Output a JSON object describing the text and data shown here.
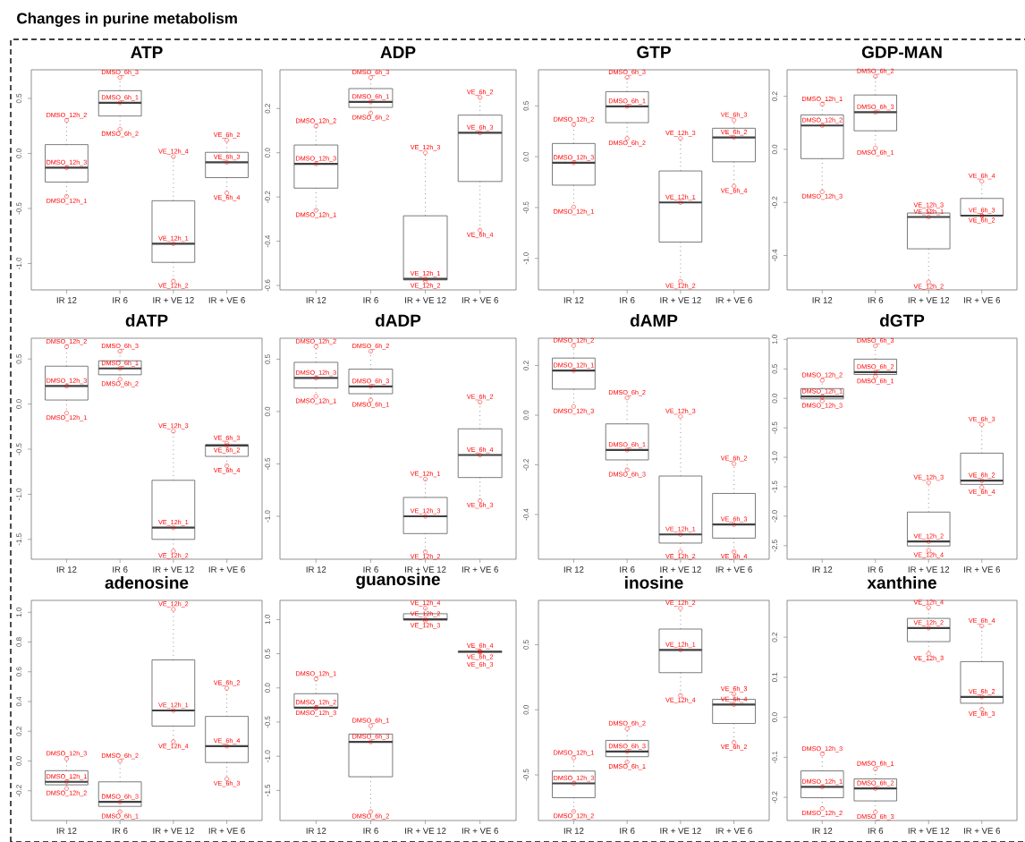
{
  "chart_data": [
    {
      "type": "box",
      "title": "ATP",
      "categories": [
        "IR 12",
        "IR 6",
        "IR + VE 12",
        "IR + VE 6"
      ],
      "ylim": [
        -1.24,
        0.76
      ],
      "marker": "circle",
      "yticks": [
        {
          "value": -1.0,
          "label": "-1.0"
        },
        {
          "value": -0.5,
          "label": "-0.5"
        },
        {
          "value": 0.0,
          "label": "0.0"
        },
        {
          "value": 0.5,
          "label": "0.5"
        }
      ],
      "boxes": [
        {
          "low": -0.39,
          "q1": -0.26,
          "median": -0.13,
          "q3": 0.08,
          "high": 0.3
        },
        {
          "low": 0.22,
          "q1": 0.34,
          "median": 0.46,
          "q3": 0.57,
          "high": 0.69
        },
        {
          "low": -1.16,
          "q1": -0.99,
          "median": -0.82,
          "q3": -0.43,
          "high": -0.03
        },
        {
          "low": -0.36,
          "q1": -0.22,
          "median": -0.08,
          "q3": 0.01,
          "high": 0.12
        }
      ],
      "series": [
        {
          "type": "scatter",
          "color": "#ff0000",
          "x": [
            "IR 12",
            "IR 12",
            "IR 12",
            "IR 6",
            "IR 6",
            "IR 6",
            "IR + VE 12",
            "IR + VE 12",
            "IR + VE 12",
            "IR + VE 6",
            "IR + VE 6",
            "IR + VE 6"
          ],
          "values": [
            0.3,
            -0.13,
            -0.39,
            0.69,
            0.46,
            0.22,
            -0.03,
            -0.82,
            -1.16,
            0.12,
            -0.08,
            -0.36
          ],
          "value_labels": [
            "DMSO_12h_2",
            "DMSO_12h_3",
            "DMSO_12h_1",
            "DMSO_6h_3",
            "DMSO_6h_1",
            "DMSO_6h_2",
            "VE_12h_4",
            "VE_12h_1",
            "VE_12h_2",
            "VE_6h_2",
            "VE_6h_3",
            "VE_6h_4"
          ]
        }
      ],
      "annotations": [
        "Changes in purine metabolism"
      ]
    },
    {
      "type": "box",
      "title": "ADP",
      "categories": [
        "IR 12",
        "IR 6",
        "IR + VE 12",
        "IR + VE 6"
      ],
      "ylim": [
        -0.62,
        0.375
      ],
      "marker": "circle",
      "yticks": [
        {
          "value": -0.6,
          "label": "-0.6"
        },
        {
          "value": -0.4,
          "label": "-0.4"
        },
        {
          "value": -0.2,
          "label": "-0.2"
        },
        {
          "value": 0.0,
          "label": "0.0"
        },
        {
          "value": 0.2,
          "label": "0.2"
        }
      ],
      "boxes": [
        {
          "low": -0.26,
          "q1": -0.16,
          "median": -0.05,
          "q3": 0.035,
          "high": 0.12
        },
        {
          "low": 0.18,
          "q1": 0.205,
          "median": 0.23,
          "q3": 0.29,
          "high": 0.34
        },
        {
          "low": -0.58,
          "q1": -0.575,
          "median": -0.57,
          "q3": -0.285,
          "high": 0.0
        },
        {
          "low": -0.35,
          "q1": -0.13,
          "median": 0.09,
          "q3": 0.17,
          "high": 0.25
        }
      ],
      "series": [
        {
          "type": "scatter",
          "color": "#ff0000",
          "x": [
            "IR 12",
            "IR 12",
            "IR 12",
            "IR 6",
            "IR 6",
            "IR 6",
            "IR + VE 12",
            "IR + VE 12",
            "IR + VE 12",
            "IR + VE 6",
            "IR + VE 6",
            "IR + VE 6"
          ],
          "values": [
            0.12,
            -0.05,
            -0.26,
            0.34,
            0.23,
            0.18,
            0.0,
            -0.57,
            -0.58,
            0.25,
            0.09,
            -0.35
          ],
          "value_labels": [
            "DMSO_12h_2",
            "DMSO_12h_3",
            "DMSO_12h_1",
            "DMSO_6h_3",
            "DMSO_6h_1",
            "DMSO_6h_2",
            "VE_12h_3",
            "VE_12h_1",
            "VE_12h_2",
            "VE_6h_2",
            "VE_6h_3",
            "VE_6h_4"
          ]
        }
      ]
    },
    {
      "type": "box",
      "title": "GTP",
      "categories": [
        "IR 12",
        "IR 6",
        "IR + VE 12",
        "IR + VE 6"
      ],
      "ylim": [
        -1.31,
        0.855
      ],
      "marker": "circle",
      "yticks": [
        {
          "value": -1.0,
          "label": "-1.0"
        },
        {
          "value": -0.5,
          "label": "-0.5"
        },
        {
          "value": 0.0,
          "label": "0.0"
        },
        {
          "value": 0.5,
          "label": "0.5"
        }
      ],
      "boxes": [
        {
          "low": -0.495,
          "q1": -0.28,
          "median": -0.06,
          "q3": 0.13,
          "high": 0.315
        },
        {
          "low": 0.18,
          "q1": 0.335,
          "median": 0.495,
          "q3": 0.64,
          "high": 0.78
        },
        {
          "low": -1.225,
          "q1": -0.84,
          "median": -0.45,
          "q3": -0.14,
          "high": 0.18
        },
        {
          "low": -0.29,
          "q1": -0.05,
          "median": 0.19,
          "q3": 0.28,
          "high": 0.36
        }
      ],
      "series": [
        {
          "type": "scatter",
          "color": "#ff0000",
          "x": [
            "IR 12",
            "IR 12",
            "IR 12",
            "IR 6",
            "IR 6",
            "IR 6",
            "IR + VE 12",
            "IR + VE 12",
            "IR + VE 12",
            "IR + VE 6",
            "IR + VE 6",
            "IR + VE 6"
          ],
          "values": [
            0.315,
            -0.06,
            -0.495,
            0.78,
            0.495,
            0.18,
            0.18,
            -0.45,
            -1.225,
            0.36,
            0.19,
            -0.29
          ],
          "value_labels": [
            "DMSO_12h_2",
            "DMSO_12h_3",
            "DMSO_12h_1",
            "DMSO_6h_3",
            "DMSO_6h_1",
            "DMSO_6h_2",
            "VE_12h_3",
            "VE_12h_1",
            "VE_12h_2",
            "VE_6h_3",
            "VE_6h_2",
            "VE_6h_4"
          ]
        }
      ]
    },
    {
      "type": "box",
      "title": "GDP-MAN",
      "categories": [
        "IR 12",
        "IR 6",
        "IR + VE 12",
        "IR + VE 6"
      ],
      "ylim": [
        -0.53,
        0.3
      ],
      "marker": "circle",
      "yticks": [
        {
          "value": -0.4,
          "label": "-0.4"
        },
        {
          "value": -0.2,
          "label": "-0.2"
        },
        {
          "value": 0.0,
          "label": "0.0"
        },
        {
          "value": 0.2,
          "label": "0.2"
        }
      ],
      "boxes": [
        {
          "low": -0.16,
          "q1": -0.035,
          "median": 0.09,
          "q3": 0.13,
          "high": 0.17
        },
        {
          "low": 0.005,
          "q1": 0.07,
          "median": 0.14,
          "q3": 0.205,
          "high": 0.275
        },
        {
          "low": -0.5,
          "q1": -0.375,
          "median": -0.255,
          "q3": -0.24,
          "high": -0.23
        },
        {
          "low": -0.25,
          "q1": -0.25,
          "median": -0.25,
          "q3": -0.185,
          "high": -0.12
        }
      ],
      "series": [
        {
          "type": "scatter",
          "color": "#ff0000",
          "x": [
            "IR 12",
            "IR 12",
            "IR 12",
            "IR 6",
            "IR 6",
            "IR 6",
            "IR + VE 12",
            "IR + VE 12",
            "IR + VE 12",
            "IR + VE 6",
            "IR + VE 6",
            "IR + VE 6"
          ],
          "values": [
            0.17,
            0.09,
            -0.16,
            0.275,
            0.14,
            0.005,
            -0.23,
            -0.255,
            -0.5,
            -0.12,
            -0.25,
            -0.25
          ],
          "value_labels": [
            "DMSO_12h_1",
            "DMSO_12h_2",
            "DMSO_12h_3",
            "DMSO_6h_2",
            "DMSO_6h_3",
            "DMSO_6h_1",
            "VE_12h_3",
            "VE_12h_1",
            "VE_12h_2",
            "VE_6h_4",
            "VE_6h_3",
            "VE_6h_2"
          ]
        }
      ]
    },
    {
      "type": "box",
      "title": "dATP",
      "categories": [
        "IR 12",
        "IR 6",
        "IR + VE 12",
        "IR + VE 6"
      ],
      "ylim": [
        -1.72,
        0.73
      ],
      "marker": "circle",
      "yticks": [
        {
          "value": -1.5,
          "label": "-1.5"
        },
        {
          "value": -1.0,
          "label": "-1.0"
        },
        {
          "value": -0.5,
          "label": "-0.5"
        },
        {
          "value": 0.0,
          "label": "0.0"
        },
        {
          "value": 0.5,
          "label": "0.5"
        }
      ],
      "boxes": [
        {
          "low": -0.1,
          "q1": 0.045,
          "median": 0.2,
          "q3": 0.42,
          "high": 0.635
        },
        {
          "low": 0.275,
          "q1": 0.325,
          "median": 0.395,
          "q3": 0.48,
          "high": 0.585
        },
        {
          "low": -1.63,
          "q1": -1.5,
          "median": -1.37,
          "q3": -0.845,
          "high": -0.3
        },
        {
          "low": -0.685,
          "q1": -0.58,
          "median": -0.46,
          "q3": -0.45,
          "high": -0.435
        }
      ],
      "series": [
        {
          "type": "scatter",
          "color": "#ff0000",
          "x": [
            "IR 12",
            "IR 12",
            "IR 12",
            "IR 6",
            "IR 6",
            "IR 6",
            "IR + VE 12",
            "IR + VE 12",
            "IR + VE 12",
            "IR + VE 6",
            "IR + VE 6",
            "IR + VE 6"
          ],
          "values": [
            0.635,
            0.2,
            -0.1,
            0.585,
            0.395,
            0.275,
            -0.3,
            -1.37,
            -1.63,
            -0.435,
            -0.46,
            -0.685
          ],
          "value_labels": [
            "DMSO_12h_2",
            "DMSO_12h_3",
            "DMSO_12h_1",
            "DMSO_6h_3",
            "DMSO_6h_1",
            "DMSO_6h_2",
            "VE_12h_3",
            "VE_12h_1",
            "VE_12h_2",
            "VE_6h_3",
            "VE_6h_2",
            "VE_6h_4"
          ]
        }
      ]
    },
    {
      "type": "box",
      "title": "dADP",
      "categories": [
        "IR 12",
        "IR 6",
        "IR + VE 12",
        "IR + VE 6"
      ],
      "ylim": [
        -1.41,
        0.7
      ],
      "marker": "circle",
      "yticks": [
        {
          "value": -1.0,
          "label": "-1.0"
        },
        {
          "value": -0.5,
          "label": "-0.5"
        },
        {
          "value": 0.0,
          "label": "0.0"
        },
        {
          "value": 0.5,
          "label": "0.5"
        }
      ],
      "boxes": [
        {
          "low": 0.145,
          "q1": 0.225,
          "median": 0.32,
          "q3": 0.47,
          "high": 0.62
        },
        {
          "low": 0.11,
          "q1": 0.17,
          "median": 0.24,
          "q3": 0.405,
          "high": 0.575
        },
        {
          "low": -1.34,
          "q1": -1.165,
          "median": -1.0,
          "q3": -0.82,
          "high": -0.645
        },
        {
          "low": -0.85,
          "q1": -0.63,
          "median": -0.415,
          "q3": -0.165,
          "high": 0.09
        }
      ],
      "series": [
        {
          "type": "scatter",
          "color": "#ff0000",
          "x": [
            "IR 12",
            "IR 12",
            "IR 12",
            "IR 6",
            "IR 6",
            "IR 6",
            "IR + VE 12",
            "IR + VE 12",
            "IR + VE 12",
            "IR + VE 6",
            "IR + VE 6",
            "IR + VE 6"
          ],
          "values": [
            0.62,
            0.32,
            0.145,
            0.575,
            0.24,
            0.11,
            -0.645,
            -1.0,
            -1.34,
            0.09,
            -0.415,
            -0.85
          ],
          "value_labels": [
            "DMSO_12h_2",
            "DMSO_12h_3",
            "DMSO_12h_1",
            "DMSO_6h_2",
            "DMSO_6h_3",
            "DMSO_6h_1",
            "VE_12h_1",
            "VE_12h_3",
            "VE_12h_2",
            "VE_6h_2",
            "VE_6h_4",
            "VE_6h_3"
          ]
        }
      ]
    },
    {
      "type": "box",
      "title": "dAMP",
      "categories": [
        "IR 12",
        "IR 6",
        "IR + VE 12",
        "IR + VE 6"
      ],
      "ylim": [
        -0.58,
        0.31
      ],
      "marker": "circle",
      "yticks": [
        {
          "value": -0.4,
          "label": "-0.4"
        },
        {
          "value": -0.2,
          "label": "-0.2"
        },
        {
          "value": 0.0,
          "label": "0.0"
        },
        {
          "value": 0.2,
          "label": "0.2"
        }
      ],
      "boxes": [
        {
          "low": 0.035,
          "q1": 0.105,
          "median": 0.18,
          "q3": 0.23,
          "high": 0.28
        },
        {
          "low": -0.22,
          "q1": -0.18,
          "median": -0.14,
          "q3": -0.035,
          "high": 0.07
        },
        {
          "low": -0.55,
          "q1": -0.515,
          "median": -0.48,
          "q3": -0.245,
          "high": -0.005
        },
        {
          "low": -0.55,
          "q1": -0.495,
          "median": -0.44,
          "q3": -0.315,
          "high": -0.195
        }
      ],
      "series": [
        {
          "type": "scatter",
          "color": "#ff0000",
          "x": [
            "IR 12",
            "IR 12",
            "IR 12",
            "IR 6",
            "IR 6",
            "IR 6",
            "IR + VE 12",
            "IR + VE 12",
            "IR + VE 12",
            "IR + VE 6",
            "IR + VE 6",
            "IR + VE 6"
          ],
          "values": [
            0.28,
            0.18,
            0.035,
            0.07,
            -0.14,
            -0.22,
            -0.005,
            -0.48,
            -0.55,
            -0.195,
            -0.44,
            -0.55
          ],
          "value_labels": [
            "DMSO_12h_2",
            "DMSO_12h_1",
            "DMSO_12h_3",
            "DMSO_6h_2",
            "DMSO_6h_1",
            "DMSO_6h_3",
            "VE_12h_3",
            "VE_12h_1",
            "VE_12h_2",
            "VE_6h_2",
            "VE_6h_3",
            "VE_6h_4"
          ]
        }
      ]
    },
    {
      "type": "box",
      "title": "dGTP",
      "categories": [
        "IR 12",
        "IR 6",
        "IR + VE 12",
        "IR + VE 6"
      ],
      "ylim": [
        -2.73,
        1.02
      ],
      "marker": "circle",
      "yticks": [
        {
          "value": -2.5,
          "label": "-2.5"
        },
        {
          "value": -2.0,
          "label": "-2.0"
        },
        {
          "value": -1.5,
          "label": "-1.5"
        },
        {
          "value": -1.0,
          "label": "-1.0"
        },
        {
          "value": -0.5,
          "label": "-0.5"
        },
        {
          "value": 0.0,
          "label": "0.0"
        },
        {
          "value": 0.5,
          "label": "0.5"
        },
        {
          "value": 1.0,
          "label": "1.0"
        }
      ],
      "boxes": [
        {
          "low": -0.045,
          "q1": -0.01,
          "median": 0.03,
          "q3": 0.165,
          "high": 0.305
        },
        {
          "low": 0.37,
          "q1": 0.405,
          "median": 0.445,
          "q3": 0.665,
          "high": 0.89
        },
        {
          "low": -2.58,
          "q1": -2.505,
          "median": -2.43,
          "q3": -1.93,
          "high": -1.43
        },
        {
          "low": -1.51,
          "q1": -1.46,
          "median": -1.395,
          "q3": -0.93,
          "high": -0.445
        }
      ],
      "series": [
        {
          "type": "scatter",
          "color": "#ff0000",
          "x": [
            "IR 12",
            "IR 12",
            "IR 12",
            "IR 6",
            "IR 6",
            "IR 6",
            "IR + VE 12",
            "IR + VE 12",
            "IR + VE 12",
            "IR + VE 6",
            "IR + VE 6",
            "IR + VE 6"
          ],
          "values": [
            0.305,
            0.03,
            -0.045,
            0.89,
            0.445,
            0.37,
            -1.43,
            -2.43,
            -2.58,
            -0.445,
            -1.395,
            -1.51
          ],
          "value_labels": [
            "DMSO_12h_2",
            "DMSO_12h_1",
            "DMSO_12h_3",
            "DMSO_6h_3",
            "DMSO_6h_2",
            "DMSO_6h_1",
            "VE_12h_3",
            "VE_12h_2",
            "VE_12h_4",
            "VE_6h_3",
            "VE_6h_2",
            "VE_6h_4"
          ]
        }
      ]
    },
    {
      "type": "box",
      "title": "adenosine",
      "categories": [
        "IR 12",
        "IR 6",
        "IR + VE 12",
        "IR + VE 6"
      ],
      "ylim": [
        -0.4,
        1.08
      ],
      "marker": "circle",
      "yticks": [
        {
          "value": -0.2,
          "label": "-0.2"
        },
        {
          "value": 0.0,
          "label": "0.0"
        },
        {
          "value": 0.2,
          "label": "0.2"
        },
        {
          "value": 0.4,
          "label": "0.4"
        },
        {
          "value": 0.6,
          "label": "0.6"
        },
        {
          "value": 0.8,
          "label": "0.8"
        },
        {
          "value": 1.0,
          "label": "1.0"
        }
      ],
      "boxes": [
        {
          "low": -0.185,
          "q1": -0.16,
          "median": -0.14,
          "q3": -0.065,
          "high": 0.015
        },
        {
          "low": -0.34,
          "q1": -0.305,
          "median": -0.275,
          "q3": -0.14,
          "high": 0.0
        },
        {
          "low": 0.13,
          "q1": 0.235,
          "median": 0.34,
          "q3": 0.68,
          "high": 1.02
        },
        {
          "low": -0.12,
          "q1": -0.01,
          "median": 0.1,
          "q3": 0.3,
          "high": 0.49
        }
      ],
      "series": [
        {
          "type": "scatter",
          "color": "#ff0000",
          "x": [
            "IR 12",
            "IR 12",
            "IR 12",
            "IR 6",
            "IR 6",
            "IR 6",
            "IR + VE 12",
            "IR + VE 12",
            "IR + VE 12",
            "IR + VE 6",
            "IR + VE 6",
            "IR + VE 6"
          ],
          "values": [
            0.015,
            -0.14,
            -0.185,
            0.0,
            -0.275,
            -0.34,
            1.02,
            0.34,
            0.13,
            0.49,
            0.1,
            -0.12
          ],
          "value_labels": [
            "DMSO_12h_3",
            "DMSO_12h_1",
            "DMSO_12h_2",
            "DMSO_6h_2",
            "DMSO_6h_3",
            "DMSO_6h_1",
            "VE_12h_2",
            "VE_12h_1",
            "VE_12h_4",
            "VE_6h_2",
            "VE_6h_4",
            "VE_6h_3"
          ]
        }
      ]
    },
    {
      "type": "box",
      "title": "guanosine",
      "categories": [
        "IR 12",
        "IR 6",
        "IR + VE 12",
        "IR + VE 6"
      ],
      "ylim": [
        -1.94,
        1.28
      ],
      "marker": "circle",
      "yticks": [
        {
          "value": -1.5,
          "label": "-1.5"
        },
        {
          "value": -1.0,
          "label": "-1.0"
        },
        {
          "value": -0.5,
          "label": "-0.5"
        },
        {
          "value": 0.0,
          "label": "0.0"
        },
        {
          "value": 0.5,
          "label": "0.5"
        },
        {
          "value": 1.0,
          "label": "1.0"
        }
      ],
      "boxes": [
        {
          "low": -0.3,
          "q1": -0.295,
          "median": -0.29,
          "q3": -0.085,
          "high": 0.13
        },
        {
          "low": -1.81,
          "q1": -1.3,
          "median": -0.79,
          "q3": -0.675,
          "high": -0.555
        },
        {
          "low": 0.98,
          "q1": 0.99,
          "median": 1.005,
          "q3": 1.085,
          "high": 1.165
        },
        {
          "low": 0.52,
          "q1": 0.525,
          "median": 0.53,
          "q3": 0.535,
          "high": 0.54
        }
      ],
      "series": [
        {
          "type": "scatter",
          "color": "#ff0000",
          "x": [
            "IR 12",
            "IR 12",
            "IR 12",
            "IR 6",
            "IR 6",
            "IR 6",
            "IR + VE 12",
            "IR + VE 12",
            "IR + VE 12",
            "IR + VE 6",
            "IR + VE 6",
            "IR + VE 6"
          ],
          "values": [
            0.13,
            -0.29,
            -0.3,
            -0.555,
            -0.79,
            -1.81,
            1.165,
            1.005,
            0.98,
            0.54,
            0.53,
            0.52
          ],
          "value_labels": [
            "DMSO_12h_1",
            "DMSO_12h_2",
            "DMSO_12h_3",
            "DMSO_6h_1",
            "DMSO_6h_3",
            "DMSO_6h_2",
            "VE_12h_4",
            "VE_12h_2",
            "VE_12h_3",
            "VE_6h_4",
            "VE_6h_3",
            "VE_6h_2"
          ]
        }
      ]
    },
    {
      "type": "box",
      "title": "inosine",
      "categories": [
        "IR 12",
        "IR 6",
        "IR + VE 12",
        "IR + VE 6"
      ],
      "ylim": [
        -0.85,
        0.84
      ],
      "marker": "circle",
      "yticks": [
        {
          "value": -0.5,
          "label": "-0.5"
        },
        {
          "value": 0.0,
          "label": "0.0"
        },
        {
          "value": 0.5,
          "label": "0.5"
        }
      ],
      "boxes": [
        {
          "low": -0.78,
          "q1": -0.675,
          "median": -0.565,
          "q3": -0.47,
          "high": -0.37
        },
        {
          "low": -0.4,
          "q1": -0.36,
          "median": -0.32,
          "q3": -0.235,
          "high": -0.145
        },
        {
          "low": 0.11,
          "q1": 0.285,
          "median": 0.46,
          "q3": 0.62,
          "high": 0.78
        },
        {
          "low": -0.25,
          "q1": -0.105,
          "median": 0.04,
          "q3": 0.08,
          "high": 0.12
        }
      ],
      "series": [
        {
          "type": "scatter",
          "color": "#ff0000",
          "x": [
            "IR 12",
            "IR 12",
            "IR 12",
            "IR 6",
            "IR 6",
            "IR 6",
            "IR + VE 12",
            "IR + VE 12",
            "IR + VE 12",
            "IR + VE 6",
            "IR + VE 6",
            "IR + VE 6"
          ],
          "values": [
            -0.37,
            -0.565,
            -0.78,
            -0.145,
            -0.32,
            -0.4,
            0.78,
            0.46,
            0.11,
            0.12,
            0.04,
            -0.25
          ],
          "value_labels": [
            "DMSO_12h_1",
            "DMSO_12h_3",
            "DMSO_12h_2",
            "DMSO_6h_2",
            "DMSO_6h_3",
            "DMSO_6h_1",
            "VE_12h_2",
            "VE_12h_1",
            "VE_12h_4",
            "VE_6h_3",
            "VE_6h_4",
            "VE_6h_2"
          ]
        }
      ]
    },
    {
      "type": "box",
      "title": "xanthine",
      "categories": [
        "IR 12",
        "IR 6",
        "IR + VE 12",
        "IR + VE 6"
      ],
      "ylim": [
        -0.258,
        0.292
      ],
      "marker": "circle",
      "yticks": [
        {
          "value": -0.2,
          "label": "-0.2"
        },
        {
          "value": -0.1,
          "label": "-0.1"
        },
        {
          "value": 0.0,
          "label": "0.0"
        },
        {
          "value": 0.1,
          "label": "0.1"
        },
        {
          "value": 0.2,
          "label": "0.2"
        }
      ],
      "boxes": [
        {
          "low": -0.228,
          "q1": -0.201,
          "median": -0.174,
          "q3": -0.134,
          "high": -0.092
        },
        {
          "low": -0.237,
          "q1": -0.209,
          "median": -0.178,
          "q3": -0.154,
          "high": -0.129
        },
        {
          "low": 0.159,
          "q1": 0.189,
          "median": 0.223,
          "q3": 0.247,
          "high": 0.274
        },
        {
          "low": 0.02,
          "q1": 0.035,
          "median": 0.051,
          "q3": 0.139,
          "high": 0.228
        }
      ],
      "series": [
        {
          "type": "scatter",
          "color": "#ff0000",
          "x": [
            "IR 12",
            "IR 12",
            "IR 12",
            "IR 6",
            "IR 6",
            "IR 6",
            "IR + VE 12",
            "IR + VE 12",
            "IR + VE 12",
            "IR + VE 6",
            "IR + VE 6",
            "IR + VE 6"
          ],
          "values": [
            -0.092,
            -0.174,
            -0.228,
            -0.129,
            -0.178,
            -0.237,
            0.274,
            0.223,
            0.159,
            0.228,
            0.051,
            0.02
          ],
          "value_labels": [
            "DMSO_12h_3",
            "DMSO_12h_1",
            "DMSO_12h_2",
            "DMSO_6h_1",
            "DMSO_6h_2",
            "DMSO_6h_3",
            "VE_12h_4",
            "VE_12h_2",
            "VE_12h_3",
            "VE_6h_4",
            "VE_6h_2",
            "VE_6h_3"
          ]
        }
      ]
    }
  ]
}
